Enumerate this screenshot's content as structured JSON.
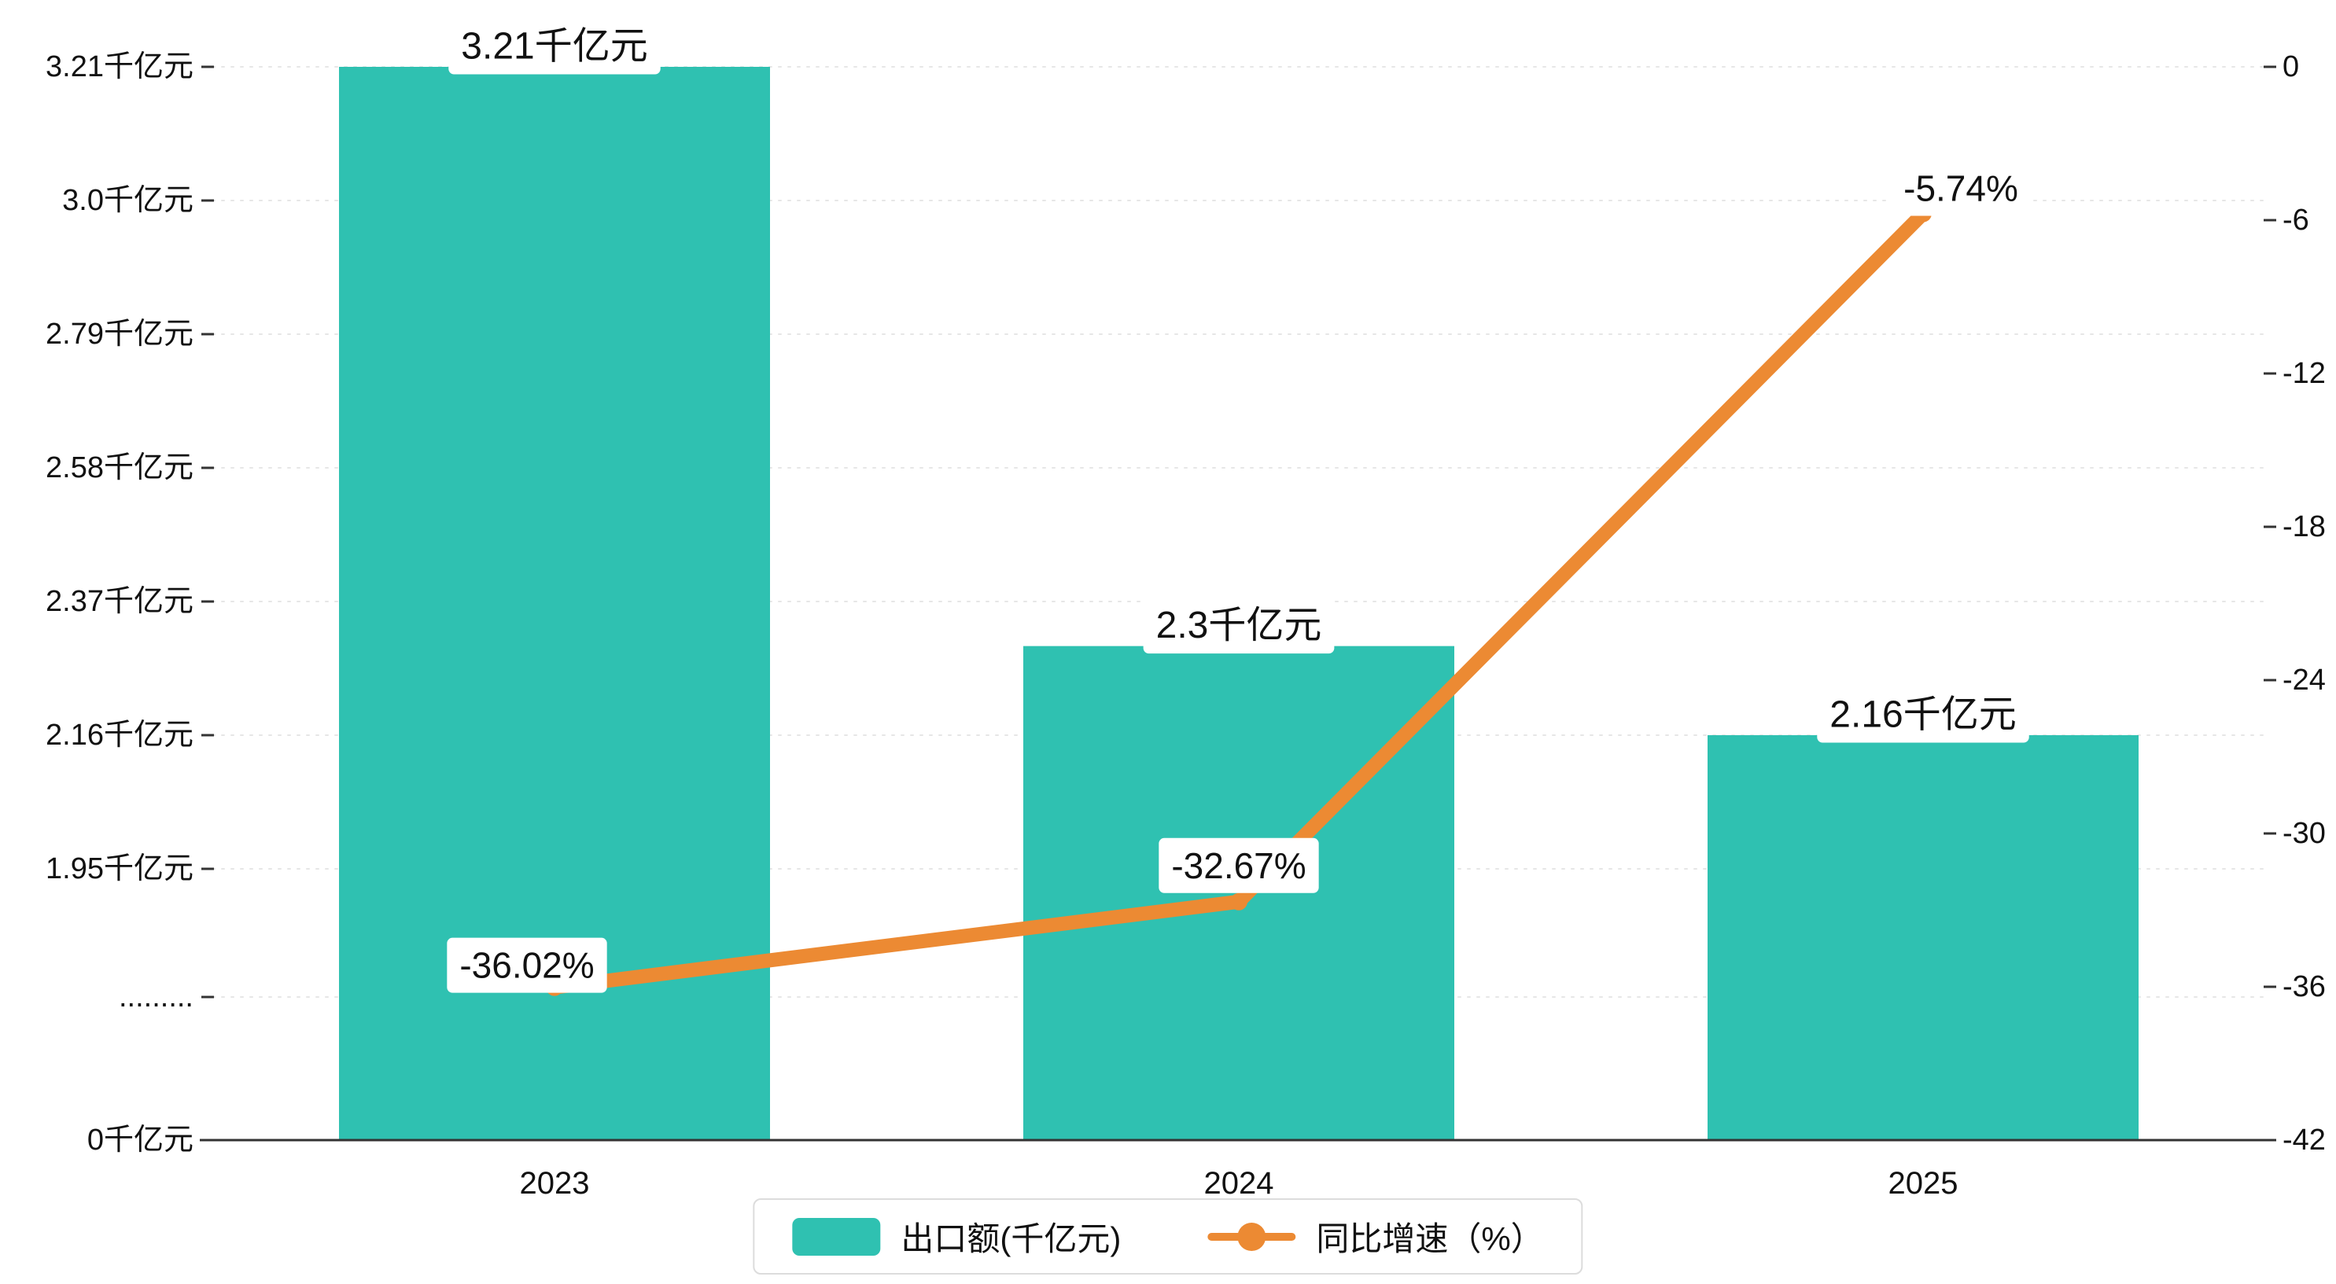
{
  "chart_data": {
    "type": "bar+line",
    "title": "",
    "categories": [
      "2023",
      "2024",
      "2025"
    ],
    "series": [
      {
        "name": "出口额(千亿元)",
        "type": "bar",
        "axis": "left",
        "values": [
          3.21,
          2.3,
          2.16
        ],
        "labels": [
          "3.21千亿元",
          "2.3千亿元",
          "2.16千亿元"
        ]
      },
      {
        "name": "同比增速（%）",
        "type": "line",
        "axis": "right",
        "values": [
          -36.02,
          -32.67,
          -5.74
        ],
        "labels": [
          "-36.02%",
          "-32.67%",
          "-5.74%"
        ]
      }
    ],
    "left_axis": {
      "unit": "千亿元",
      "has_break": true,
      "tick_labels": [
        "0千亿元",
        ".........",
        "1.95千亿元",
        "2.16千亿元",
        "2.37千亿元",
        "2.58千亿元",
        "2.79千亿元",
        "3.0千亿元",
        "3.21千亿元"
      ]
    },
    "right_axis": {
      "min": -42,
      "max": 0,
      "tick_labels": [
        "0",
        "-6",
        "-12",
        "-18",
        "-24",
        "-30",
        "-36",
        "-42"
      ]
    },
    "grid": true,
    "legend_position": "bottom"
  },
  "colors": {
    "bar": "#2fc1b1",
    "line": "#ec8a33",
    "axis": "#333333",
    "grid": "#e6e6e6",
    "text": "#111111",
    "label_bg": "#ffffff"
  }
}
